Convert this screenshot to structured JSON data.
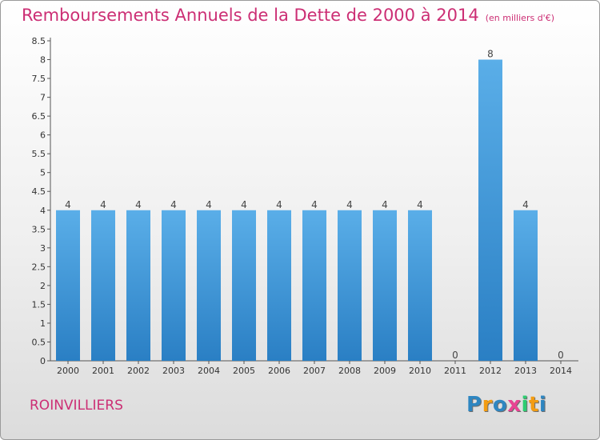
{
  "title": "Remboursements Annuels de la Dette de 2000 à 2014",
  "unit_note": "(en milliers d'€)",
  "city": "ROINVILLIERS",
  "logo": {
    "letters": [
      "P",
      "r",
      "o",
      "x",
      "i",
      "t",
      "i"
    ],
    "colors": [
      "#2e86c1",
      "#f39c12",
      "#2e86c1",
      "#e84393",
      "#2ecc71",
      "#f39c12",
      "#2e86c1"
    ]
  },
  "colors": {
    "bar": "#4fa3e0",
    "bar_dark": "#2a7fc4",
    "title": "#cc2e74"
  },
  "chart_data": {
    "type": "bar",
    "categories": [
      "2000",
      "2001",
      "2002",
      "2003",
      "2004",
      "2005",
      "2006",
      "2007",
      "2008",
      "2009",
      "2010",
      "2011",
      "2012",
      "2013",
      "2014"
    ],
    "values": [
      4,
      4,
      4,
      4,
      4,
      4,
      4,
      4,
      4,
      4,
      4,
      0,
      8,
      4,
      0
    ],
    "data_labels": [
      "4",
      "4",
      "4",
      "4",
      "4",
      "4",
      "4",
      "4",
      "4",
      "4",
      "4",
      "0",
      "8",
      "4",
      "0"
    ],
    "ylim": [
      0,
      8.5
    ],
    "yticks": [
      "0",
      "0.5",
      "1",
      "1.5",
      "2",
      "2.5",
      "3",
      "3.5",
      "4",
      "4.5",
      "5",
      "5.5",
      "6",
      "6.5",
      "7",
      "7.5",
      "8",
      "8.5"
    ],
    "grid": false,
    "title": "Remboursements Annuels de la Dette de 2000 à 2014",
    "xlabel": "",
    "ylabel": ""
  }
}
